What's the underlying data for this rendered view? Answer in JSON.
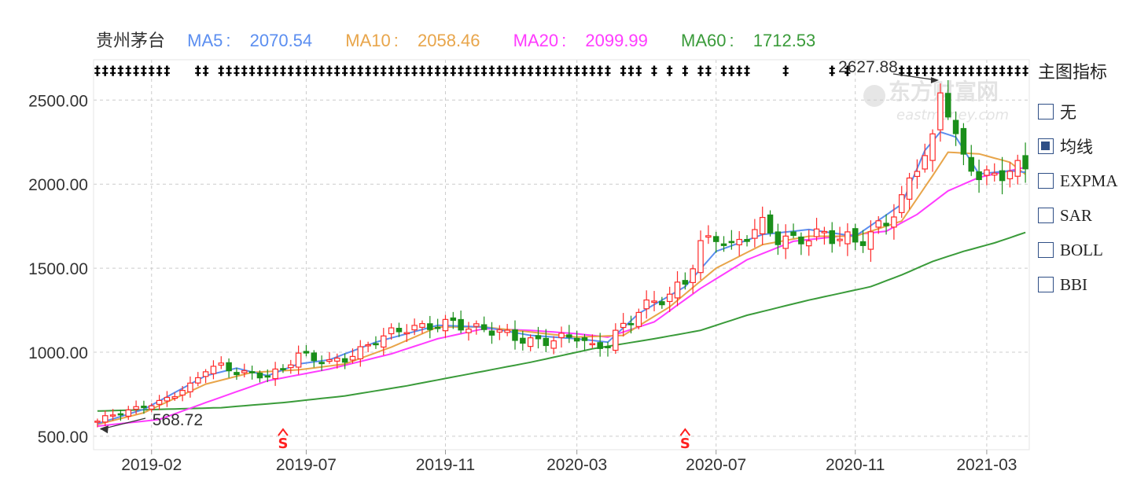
{
  "legend": {
    "stock_name": "贵州茅台",
    "ma5": {
      "label": "MA5",
      "value": "2070.54",
      "color": "#5b8ef0"
    },
    "ma10": {
      "label": "MA10",
      "value": "2058.46",
      "color": "#e8a54a"
    },
    "ma20": {
      "label": "MA20",
      "value": "2099.99",
      "color": "#ff3cff"
    },
    "ma60": {
      "label": "MA60",
      "value": "1712.53",
      "color": "#3a9b3a"
    }
  },
  "panel": {
    "title": "主图指标",
    "options": [
      {
        "label": "无",
        "checked": false
      },
      {
        "label": "均线",
        "checked": true
      },
      {
        "label": "EXPMA",
        "checked": false
      },
      {
        "label": "SAR",
        "checked": false
      },
      {
        "label": "BOLL",
        "checked": false
      },
      {
        "label": "BBI",
        "checked": false
      }
    ]
  },
  "watermark": {
    "cn": "东方财富网",
    "en": "eastmoney.com"
  },
  "chart_data": {
    "type": "candlestick",
    "title": "",
    "xlabel": "",
    "ylabel": "",
    "ylim": [
      420,
      2740
    ],
    "yticks": [
      "2500.00",
      "2000.00",
      "1500.00",
      "1000.00",
      "500.00"
    ],
    "ytick_values": [
      2500,
      2000,
      1500,
      1000,
      500
    ],
    "xticks": [
      "2019-02",
      "2019-07",
      "2019-11",
      "2020-03",
      "2020-07",
      "2020-11",
      "2021-03"
    ],
    "xtick_weeks": [
      7,
      27,
      45,
      62,
      80,
      98,
      115
    ],
    "n_weeks": 121,
    "grid": true,
    "annotations": [
      {
        "text": "2627.88",
        "week": 109,
        "value": 2627.88,
        "kind": "high"
      },
      {
        "text": "568.72",
        "week": 0,
        "value": 568.72,
        "kind": "low"
      }
    ],
    "signals": [
      {
        "text": "S",
        "week": 24,
        "color": "#ff2020"
      },
      {
        "text": "S",
        "week": 76,
        "color": "#ff2020"
      }
    ],
    "close_anchors": [
      [
        0,
        590
      ],
      [
        2,
        630
      ],
      [
        4,
        650
      ],
      [
        6,
        680
      ],
      [
        8,
        700
      ],
      [
        10,
        750
      ],
      [
        12,
        800
      ],
      [
        14,
        900
      ],
      [
        16,
        920
      ],
      [
        18,
        880
      ],
      [
        20,
        870
      ],
      [
        22,
        860
      ],
      [
        24,
        900
      ],
      [
        26,
        990
      ],
      [
        28,
        960
      ],
      [
        30,
        940
      ],
      [
        32,
        960
      ],
      [
        34,
        1010
      ],
      [
        36,
        1070
      ],
      [
        38,
        1120
      ],
      [
        40,
        1140
      ],
      [
        42,
        1150
      ],
      [
        44,
        1160
      ],
      [
        46,
        1180
      ],
      [
        48,
        1140
      ],
      [
        50,
        1140
      ],
      [
        52,
        1120
      ],
      [
        54,
        1090
      ],
      [
        56,
        1060
      ],
      [
        58,
        1070
      ],
      [
        60,
        1080
      ],
      [
        62,
        1100
      ],
      [
        64,
        1020
      ],
      [
        66,
        1060
      ],
      [
        68,
        1150
      ],
      [
        70,
        1250
      ],
      [
        72,
        1300
      ],
      [
        74,
        1340
      ],
      [
        76,
        1420
      ],
      [
        78,
        1640
      ],
      [
        80,
        1690
      ],
      [
        82,
        1620
      ],
      [
        84,
        1700
      ],
      [
        86,
        1760
      ],
      [
        88,
        1680
      ],
      [
        90,
        1660
      ],
      [
        92,
        1690
      ],
      [
        94,
        1700
      ],
      [
        96,
        1680
      ],
      [
        98,
        1660
      ],
      [
        100,
        1700
      ],
      [
        102,
        1780
      ],
      [
        104,
        1900
      ],
      [
        106,
        2120
      ],
      [
        108,
        2250
      ],
      [
        109,
        2540
      ],
      [
        110,
        2450
      ],
      [
        112,
        2130
      ],
      [
        114,
        2070
      ],
      [
        116,
        2030
      ],
      [
        118,
        2100
      ],
      [
        120,
        2080
      ]
    ],
    "ma_anchors": {
      "ma5": [
        [
          0,
          575
        ],
        [
          6,
          660
        ],
        [
          14,
          860
        ],
        [
          18,
          905
        ],
        [
          22,
          860
        ],
        [
          26,
          930
        ],
        [
          30,
          955
        ],
        [
          36,
          1060
        ],
        [
          44,
          1160
        ],
        [
          50,
          1150
        ],
        [
          56,
          1100
        ],
        [
          62,
          1080
        ],
        [
          66,
          1060
        ],
        [
          70,
          1230
        ],
        [
          76,
          1390
        ],
        [
          80,
          1600
        ],
        [
          86,
          1700
        ],
        [
          92,
          1730
        ],
        [
          98,
          1690
        ],
        [
          104,
          1880
        ],
        [
          107,
          2200
        ],
        [
          109,
          2310
        ],
        [
          111,
          2280
        ],
        [
          114,
          2060
        ],
        [
          118,
          2080
        ],
        [
          120,
          2070.54
        ]
      ],
      "ma10": [
        [
          0,
          570
        ],
        [
          6,
          640
        ],
        [
          14,
          810
        ],
        [
          20,
          880
        ],
        [
          26,
          895
        ],
        [
          32,
          930
        ],
        [
          38,
          1030
        ],
        [
          44,
          1150
        ],
        [
          50,
          1150
        ],
        [
          56,
          1120
        ],
        [
          62,
          1090
        ],
        [
          68,
          1100
        ],
        [
          74,
          1270
        ],
        [
          80,
          1500
        ],
        [
          86,
          1640
        ],
        [
          92,
          1690
        ],
        [
          98,
          1690
        ],
        [
          104,
          1780
        ],
        [
          108,
          2050
        ],
        [
          110,
          2190
        ],
        [
          114,
          2180
        ],
        [
          118,
          2130
        ],
        [
          120,
          2058.46
        ]
      ],
      "ma20": [
        [
          0,
          560
        ],
        [
          8,
          600
        ],
        [
          14,
          700
        ],
        [
          22,
          830
        ],
        [
          30,
          900
        ],
        [
          38,
          990
        ],
        [
          44,
          1080
        ],
        [
          50,
          1140
        ],
        [
          56,
          1130
        ],
        [
          62,
          1110
        ],
        [
          66,
          1090
        ],
        [
          72,
          1180
        ],
        [
          78,
          1380
        ],
        [
          84,
          1550
        ],
        [
          90,
          1660
        ],
        [
          96,
          1690
        ],
        [
          102,
          1720
        ],
        [
          106,
          1820
        ],
        [
          110,
          1960
        ],
        [
          114,
          2040
        ],
        [
          117,
          2070
        ],
        [
          120,
          2099.99
        ]
      ],
      "ma60": [
        [
          0,
          650
        ],
        [
          16,
          670
        ],
        [
          24,
          700
        ],
        [
          32,
          740
        ],
        [
          40,
          800
        ],
        [
          48,
          870
        ],
        [
          56,
          940
        ],
        [
          64,
          1020
        ],
        [
          72,
          1080
        ],
        [
          78,
          1130
        ],
        [
          84,
          1220
        ],
        [
          92,
          1310
        ],
        [
          100,
          1390
        ],
        [
          104,
          1460
        ],
        [
          108,
          1540
        ],
        [
          112,
          1600
        ],
        [
          116,
          1650
        ],
        [
          120,
          1712.53
        ]
      ]
    }
  }
}
